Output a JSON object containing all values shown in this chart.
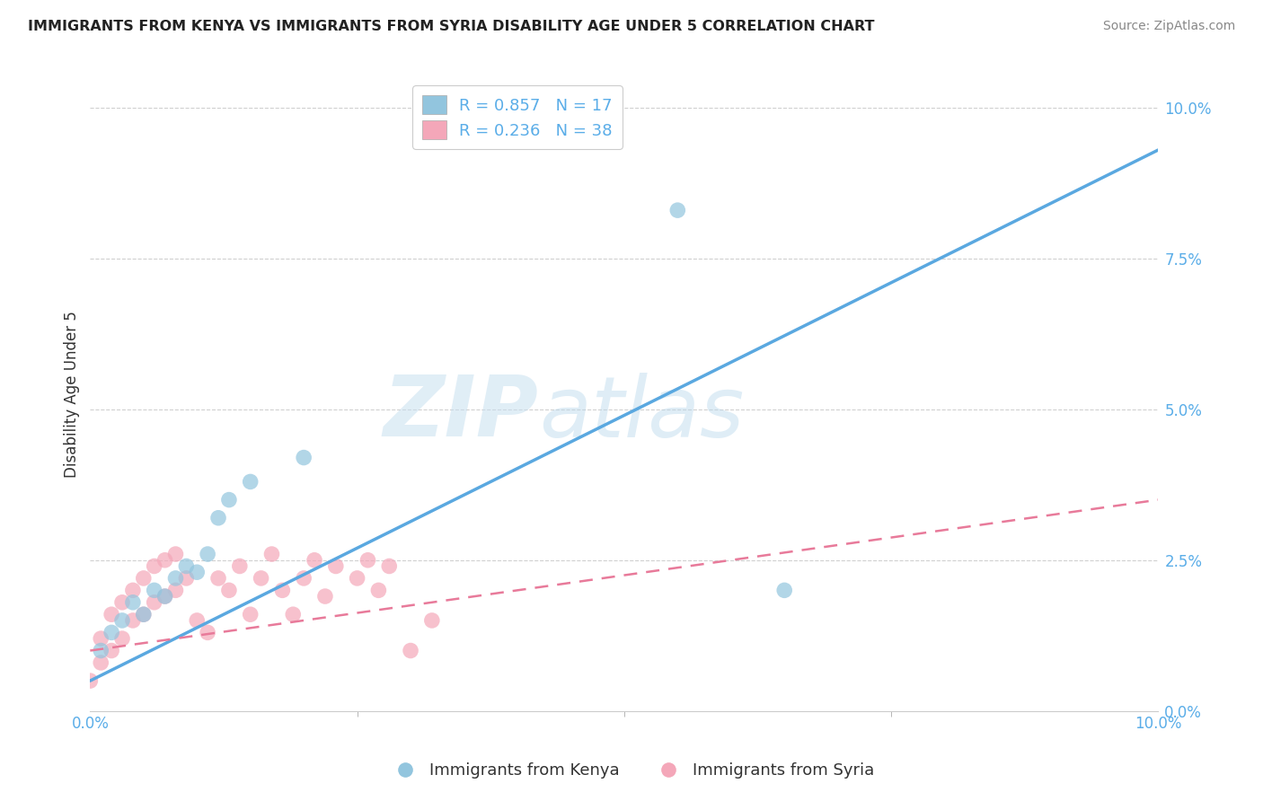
{
  "title": "IMMIGRANTS FROM KENYA VS IMMIGRANTS FROM SYRIA DISABILITY AGE UNDER 5 CORRELATION CHART",
  "source": "Source: ZipAtlas.com",
  "ylabel_label": "Disability Age Under 5",
  "xlim": [
    0.0,
    0.1
  ],
  "ylim": [
    0.0,
    0.105
  ],
  "kenya_R": 0.857,
  "kenya_N": 17,
  "syria_R": 0.236,
  "syria_N": 38,
  "kenya_color": "#92c5de",
  "kenya_line_color": "#5aa8e0",
  "syria_color": "#f4a7b9",
  "syria_line_color": "#e87a9a",
  "tick_color": "#5aade8",
  "kenya_scatter_x": [
    0.001,
    0.002,
    0.003,
    0.004,
    0.005,
    0.006,
    0.007,
    0.008,
    0.009,
    0.01,
    0.011,
    0.012,
    0.013,
    0.015,
    0.02,
    0.055,
    0.065
  ],
  "kenya_scatter_y": [
    0.01,
    0.013,
    0.015,
    0.018,
    0.016,
    0.02,
    0.019,
    0.022,
    0.024,
    0.023,
    0.026,
    0.032,
    0.035,
    0.038,
    0.042,
    0.083,
    0.02
  ],
  "syria_scatter_x": [
    0.0,
    0.001,
    0.001,
    0.002,
    0.002,
    0.003,
    0.003,
    0.004,
    0.004,
    0.005,
    0.005,
    0.006,
    0.006,
    0.007,
    0.007,
    0.008,
    0.008,
    0.009,
    0.01,
    0.011,
    0.012,
    0.013,
    0.014,
    0.015,
    0.016,
    0.017,
    0.018,
    0.019,
    0.02,
    0.021,
    0.022,
    0.023,
    0.025,
    0.026,
    0.027,
    0.028,
    0.03,
    0.032
  ],
  "syria_scatter_y": [
    0.005,
    0.008,
    0.012,
    0.01,
    0.016,
    0.012,
    0.018,
    0.015,
    0.02,
    0.016,
    0.022,
    0.018,
    0.024,
    0.019,
    0.025,
    0.02,
    0.026,
    0.022,
    0.015,
    0.013,
    0.022,
    0.02,
    0.024,
    0.016,
    0.022,
    0.026,
    0.02,
    0.016,
    0.022,
    0.025,
    0.019,
    0.024,
    0.022,
    0.025,
    0.02,
    0.024,
    0.01,
    0.015
  ],
  "kenya_line_x0": 0.0,
  "kenya_line_y0": 0.005,
  "kenya_line_x1": 0.1,
  "kenya_line_y1": 0.093,
  "syria_line_x0": 0.0,
  "syria_line_y0": 0.01,
  "syria_line_x1": 0.1,
  "syria_line_y1": 0.035,
  "watermark_text": "ZIP",
  "watermark_text2": "atlas",
  "background_color": "#ffffff",
  "grid_color": "#d0d0d0"
}
